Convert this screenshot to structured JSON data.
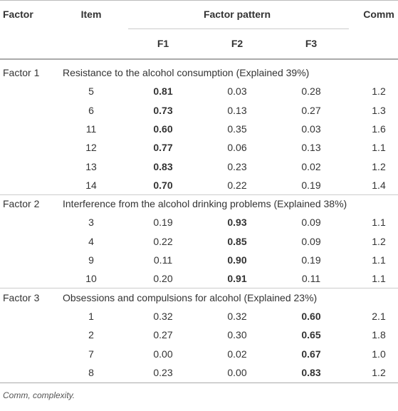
{
  "header": {
    "factor": "Factor",
    "item": "Item",
    "pattern": "Factor pattern",
    "comm": "Comm",
    "columns": [
      "F1",
      "F2",
      "F3"
    ]
  },
  "groups": [
    {
      "factor": "Factor 1",
      "description": "Resistance to the alcohol consumption (Explained 39%)",
      "bold_column": 0,
      "rows": [
        [
          "5",
          "0.81",
          "0.03",
          "0.28",
          "1.2"
        ],
        [
          "6",
          "0.73",
          "0.13",
          "0.27",
          "1.3"
        ],
        [
          "11",
          "0.60",
          "0.35",
          "0.03",
          "1.6"
        ],
        [
          "12",
          "0.77",
          "0.06",
          "0.13",
          "1.1"
        ],
        [
          "13",
          "0.83",
          "0.23",
          "0.02",
          "1.2"
        ],
        [
          "14",
          "0.70",
          "0.22",
          "0.19",
          "1.4"
        ]
      ]
    },
    {
      "factor": "Factor 2",
      "description": "Interference from the alcohol drinking problems (Explained 38%)",
      "bold_column": 1,
      "rows": [
        [
          "3",
          "0.19",
          "0.93",
          "0.09",
          "1.1"
        ],
        [
          "4",
          "0.22",
          "0.85",
          "0.09",
          "1.2"
        ],
        [
          "9",
          "0.11",
          "0.90",
          "0.19",
          "1.1"
        ],
        [
          "10",
          "0.20",
          "0.91",
          "0.11",
          "1.1"
        ]
      ]
    },
    {
      "factor": "Factor 3",
      "description": "Obsessions and compulsions for alcohol (Explained 23%)",
      "bold_column": 2,
      "rows": [
        [
          "1",
          "0.32",
          "0.32",
          "0.60",
          "2.1"
        ],
        [
          "2",
          "0.27",
          "0.30",
          "0.65",
          "1.8"
        ],
        [
          "7",
          "0.00",
          "0.02",
          "0.67",
          "1.0"
        ],
        [
          "8",
          "0.23",
          "0.00",
          "0.83",
          "1.2"
        ]
      ]
    }
  ],
  "footnote": "Comm, complexity."
}
